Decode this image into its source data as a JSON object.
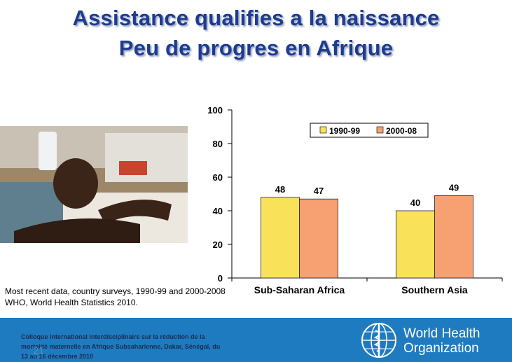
{
  "title": {
    "line1": "Assistance qualifies a la naissance",
    "line2": "Peu de progres en Afrique"
  },
  "source": {
    "line1": "Most recent data, country surveys, 1990-99 and 2000-2008",
    "line2": "WHO, World Health Statistics 2010."
  },
  "footer": {
    "conference_line1": "Colloque international interdisciplinaire sur la réduction de la",
    "conference_line2": "mortalité maternelle en Afrique Subsaharienne, Dakar, Sénégal, du",
    "conference_line3": "13 au 16 décembre 2010",
    "page_number": "21",
    "who_line1": "World Health",
    "who_line2": "Organization"
  },
  "colors": {
    "title": "#1d3c8f",
    "series1": "#f9e25a",
    "series2": "#f7a072",
    "footer": "#1f7bbf"
  },
  "chart_data": {
    "type": "bar",
    "categories": [
      "Sub-Saharan Africa",
      "Southern Asia"
    ],
    "series": [
      {
        "name": "1990-99",
        "values": [
          48,
          40
        ],
        "color": "#f9e25a"
      },
      {
        "name": "2000-08",
        "values": [
          47,
          49
        ],
        "color": "#f7a072"
      }
    ],
    "yticks": [
      0,
      20,
      40,
      60,
      80,
      100
    ],
    "ylim": [
      0,
      100
    ],
    "legend": "top-right",
    "data_labels": true
  }
}
